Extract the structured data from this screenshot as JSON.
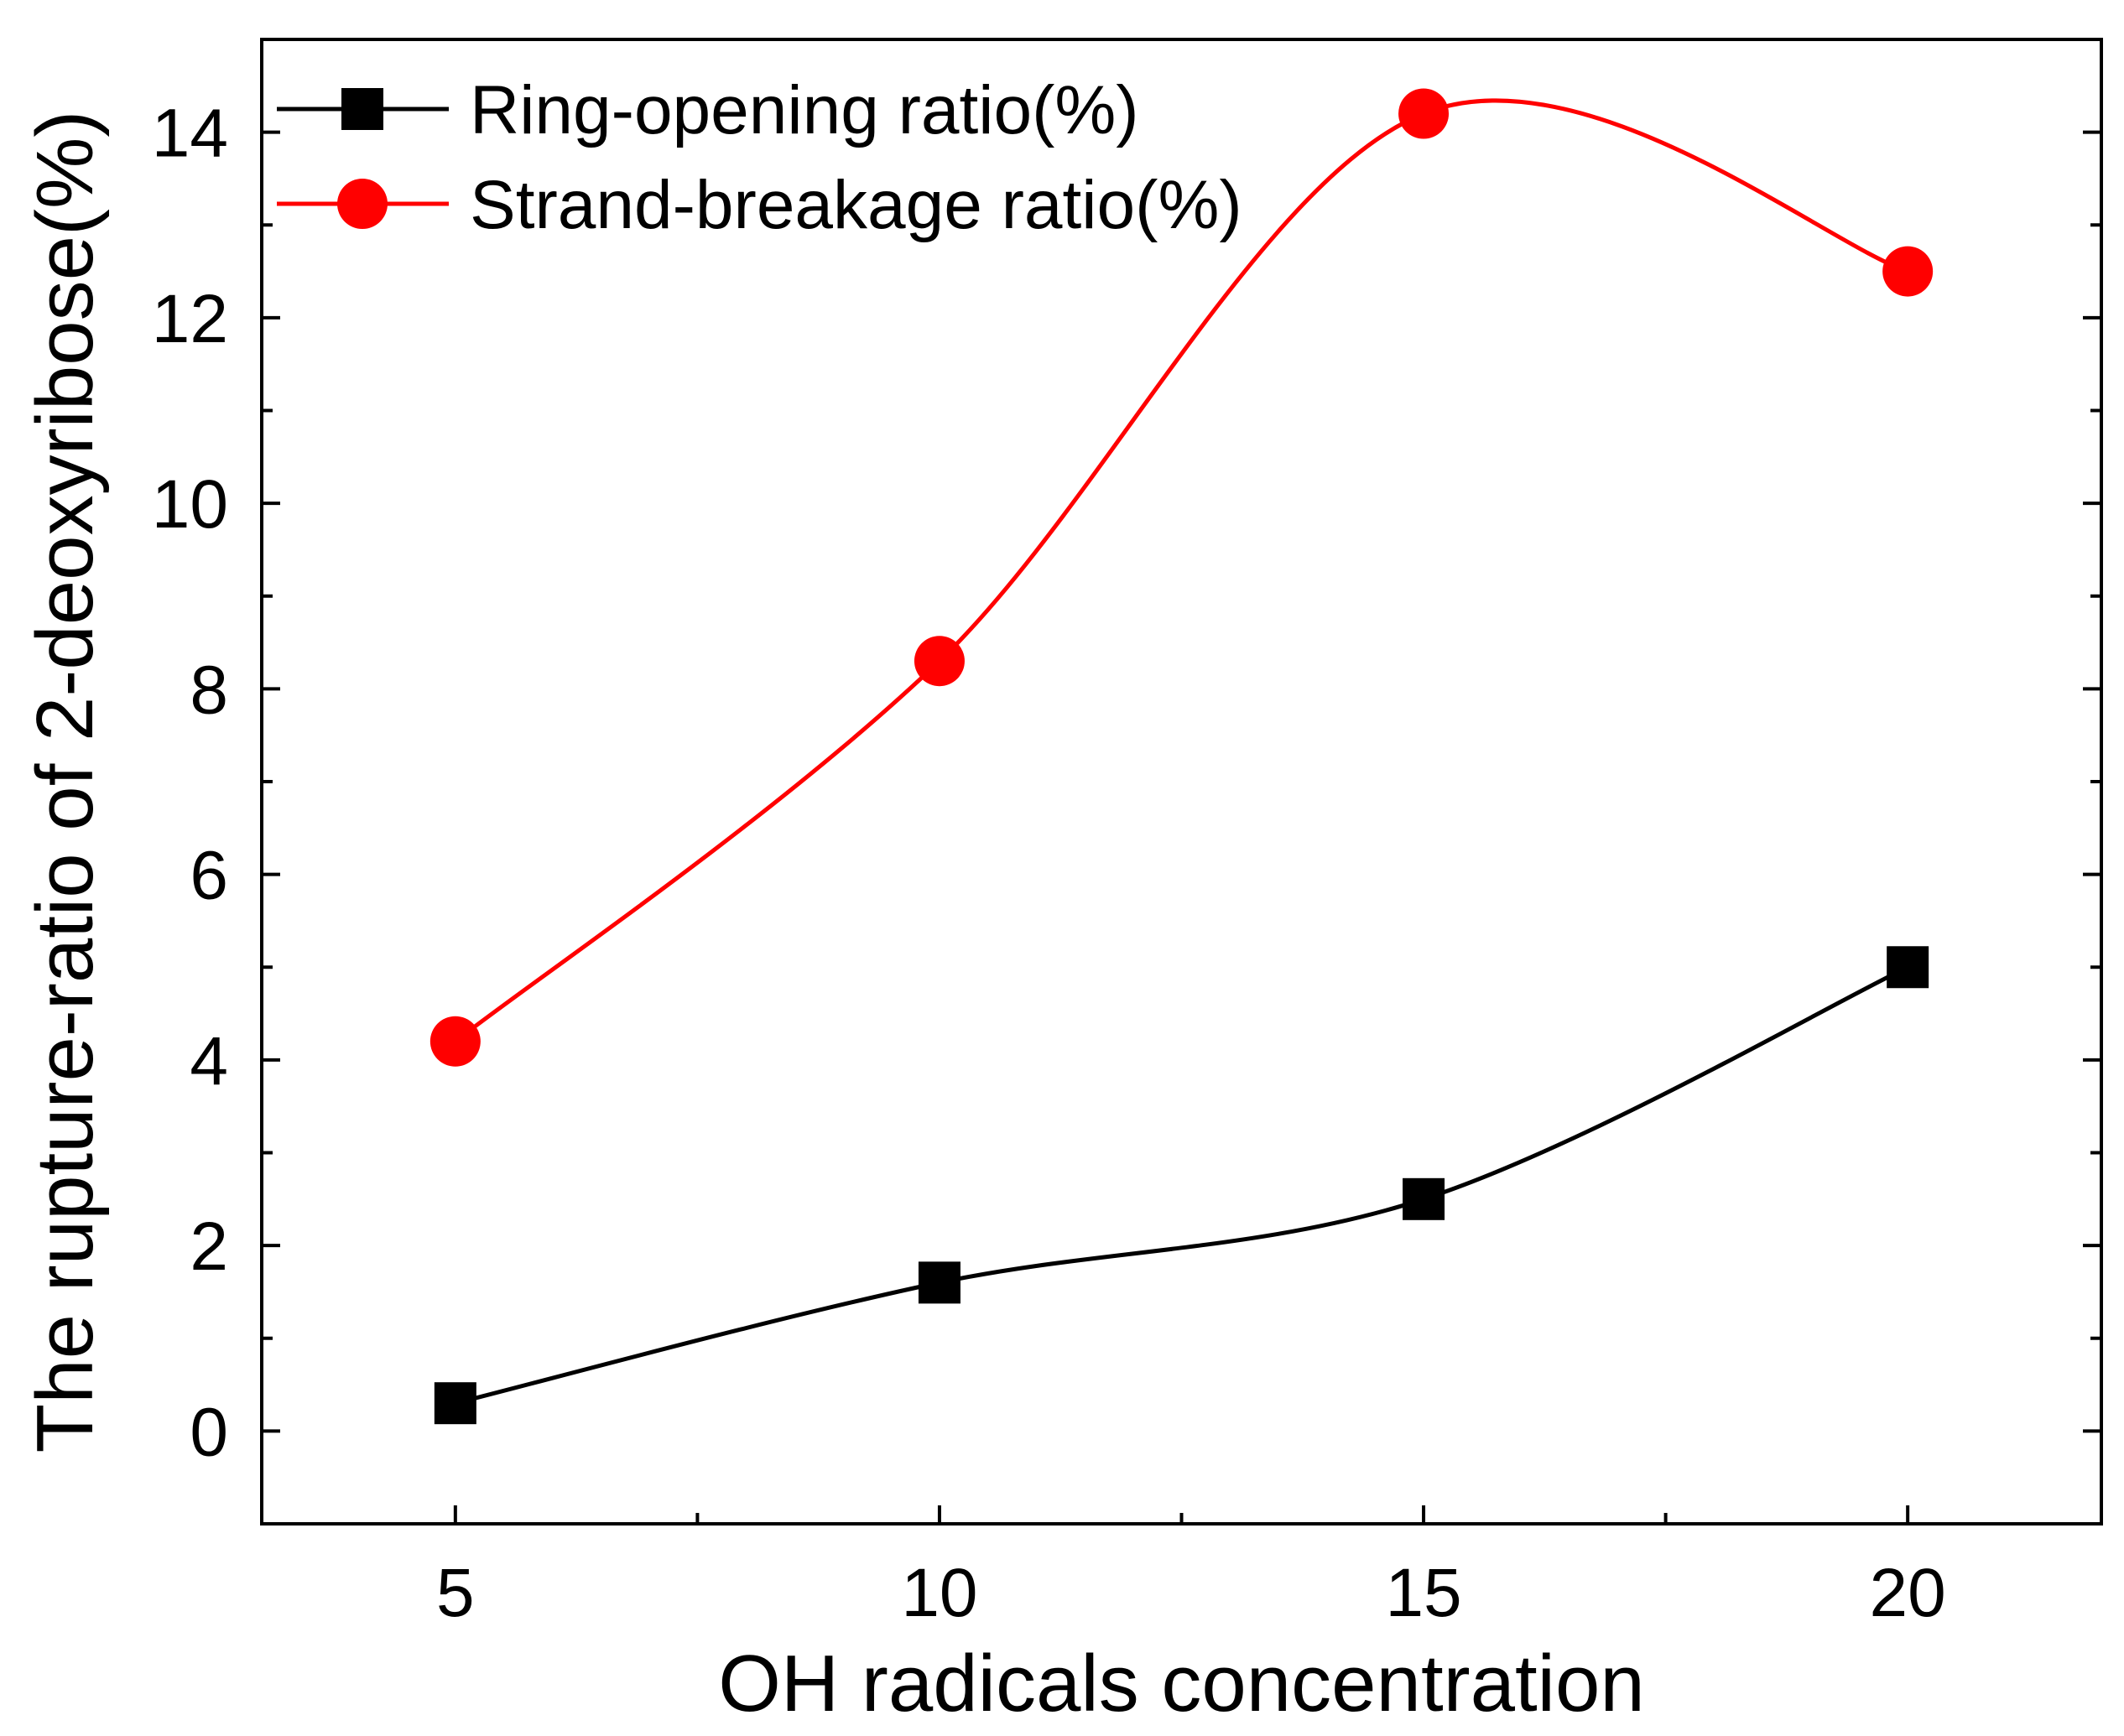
{
  "chart_data": {
    "type": "line",
    "xlabel": "OH radicals concentration",
    "ylabel": "The rupture-ratio of 2-deoxyribose(%)",
    "xlim": [
      3,
      22
    ],
    "ylim": [
      -1,
      15
    ],
    "x_ticks": [
      5,
      10,
      15,
      20
    ],
    "x_tick_labels": [
      "5",
      "10",
      "15",
      "20"
    ],
    "y_ticks": [
      0,
      2,
      4,
      6,
      8,
      10,
      12,
      14
    ],
    "y_tick_labels": [
      "0",
      "2",
      "4",
      "6",
      "8",
      "10",
      "12",
      "14"
    ],
    "x": [
      5,
      10,
      15,
      20
    ],
    "grid": false,
    "legend_position": "top-left",
    "series": [
      {
        "name": "Ring-opening ratio(%)",
        "values": [
          0.3,
          1.6,
          2.5,
          5.0
        ],
        "color": "#000000",
        "marker": "square"
      },
      {
        "name": "Strand-breakage ratio(%)",
        "values": [
          4.2,
          8.3,
          14.2,
          12.5
        ],
        "color": "#ff0000",
        "marker": "circle"
      }
    ]
  }
}
